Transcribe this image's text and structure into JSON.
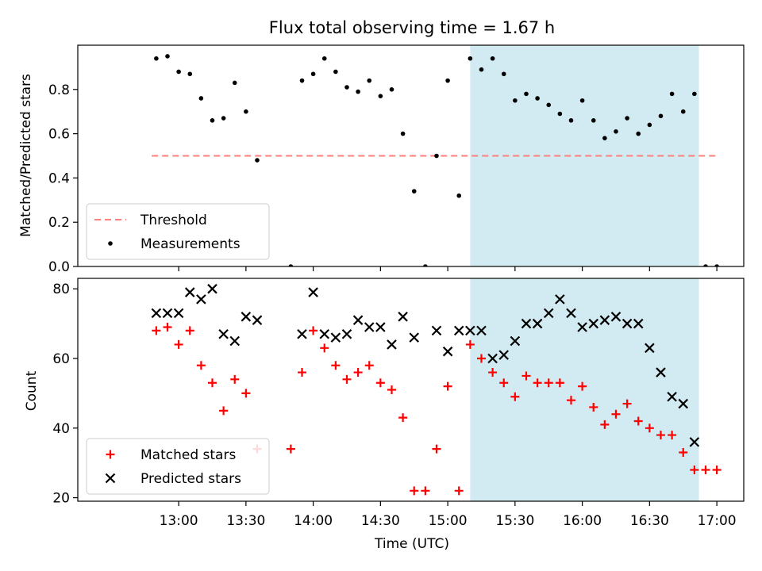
{
  "title": "Flux total observing time = 1.67 h",
  "colors": {
    "threshold": "#ff7f7f",
    "shade": "#add8e6",
    "matched": "#ff0000",
    "predicted": "#000000",
    "measurements": "#000000"
  },
  "chart_data": [
    {
      "type": "scatter",
      "ylabel": "Matched/Predicted stars",
      "ylim": [
        0,
        1.0
      ],
      "xlim_hours": [
        12.25,
        17.2
      ],
      "yticks": [
        "0.0",
        "0.2",
        "0.4",
        "0.6",
        "0.8"
      ],
      "shaded_span": [
        "15:10",
        "16:52"
      ],
      "legend_position": "lower left",
      "threshold": {
        "name": "Threshold",
        "value": 0.5,
        "x_range": [
          "12:48",
          "17:00"
        ]
      },
      "series": [
        {
          "name": "Measurements",
          "points": [
            [
              "12:50",
              0.94
            ],
            [
              "12:55",
              0.95
            ],
            [
              "13:00",
              0.88
            ],
            [
              "13:05",
              0.87
            ],
            [
              "13:10",
              0.76
            ],
            [
              "13:15",
              0.66
            ],
            [
              "13:20",
              0.67
            ],
            [
              "13:25",
              0.83
            ],
            [
              "13:30",
              0.7
            ],
            [
              "13:35",
              0.48
            ],
            [
              "13:50",
              0.0
            ],
            [
              "13:55",
              0.84
            ],
            [
              "14:00",
              0.87
            ],
            [
              "14:05",
              0.94
            ],
            [
              "14:10",
              0.88
            ],
            [
              "14:15",
              0.81
            ],
            [
              "14:20",
              0.79
            ],
            [
              "14:25",
              0.84
            ],
            [
              "14:30",
              0.77
            ],
            [
              "14:35",
              0.8
            ],
            [
              "14:40",
              0.6
            ],
            [
              "14:45",
              0.34
            ],
            [
              "14:50",
              0.0
            ],
            [
              "14:55",
              0.5
            ],
            [
              "15:00",
              0.84
            ],
            [
              "15:05",
              0.32
            ],
            [
              "15:10",
              0.94
            ],
            [
              "15:15",
              0.89
            ],
            [
              "15:20",
              0.94
            ],
            [
              "15:25",
              0.87
            ],
            [
              "15:30",
              0.75
            ],
            [
              "15:35",
              0.78
            ],
            [
              "15:40",
              0.76
            ],
            [
              "15:45",
              0.73
            ],
            [
              "15:50",
              0.69
            ],
            [
              "15:55",
              0.66
            ],
            [
              "16:00",
              0.75
            ],
            [
              "16:05",
              0.66
            ],
            [
              "16:10",
              0.58
            ],
            [
              "16:15",
              0.61
            ],
            [
              "16:20",
              0.67
            ],
            [
              "16:25",
              0.6
            ],
            [
              "16:30",
              0.64
            ],
            [
              "16:35",
              0.68
            ],
            [
              "16:40",
              0.78
            ],
            [
              "16:45",
              0.7
            ],
            [
              "16:50",
              0.78
            ],
            [
              "16:55",
              0.0
            ],
            [
              "17:00",
              0.0
            ]
          ]
        }
      ]
    },
    {
      "type": "scatter",
      "xlabel": "Time (UTC)",
      "ylabel": "Count",
      "ylim": [
        19,
        83
      ],
      "xlim_hours": [
        12.25,
        17.2
      ],
      "xticks": [
        "13:00",
        "13:30",
        "14:00",
        "14:30",
        "15:00",
        "15:30",
        "16:00",
        "16:30",
        "17:00"
      ],
      "yticks": [
        "20",
        "40",
        "60",
        "80"
      ],
      "shaded_span": [
        "15:10",
        "16:52"
      ],
      "legend_position": "lower left",
      "series": [
        {
          "name": "Matched stars",
          "marker": "+",
          "points": [
            [
              "12:50",
              68
            ],
            [
              "12:55",
              69
            ],
            [
              "13:00",
              64
            ],
            [
              "13:05",
              68
            ],
            [
              "13:10",
              58
            ],
            [
              "13:15",
              53
            ],
            [
              "13:20",
              45
            ],
            [
              "13:25",
              54
            ],
            [
              "13:30",
              50
            ],
            [
              "13:35",
              34
            ],
            [
              "13:50",
              34
            ],
            [
              "13:55",
              56
            ],
            [
              "14:00",
              68
            ],
            [
              "14:05",
              63
            ],
            [
              "14:10",
              58
            ],
            [
              "14:15",
              54
            ],
            [
              "14:20",
              56
            ],
            [
              "14:25",
              58
            ],
            [
              "14:30",
              53
            ],
            [
              "14:35",
              51
            ],
            [
              "14:40",
              43
            ],
            [
              "14:45",
              22
            ],
            [
              "14:50",
              22
            ],
            [
              "14:55",
              34
            ],
            [
              "15:00",
              52
            ],
            [
              "15:05",
              22
            ],
            [
              "15:10",
              64
            ],
            [
              "15:15",
              60
            ],
            [
              "15:20",
              56
            ],
            [
              "15:25",
              53
            ],
            [
              "15:30",
              49
            ],
            [
              "15:35",
              55
            ],
            [
              "15:40",
              53
            ],
            [
              "15:45",
              53
            ],
            [
              "15:50",
              53
            ],
            [
              "15:55",
              48
            ],
            [
              "16:00",
              52
            ],
            [
              "16:05",
              46
            ],
            [
              "16:10",
              41
            ],
            [
              "16:15",
              44
            ],
            [
              "16:20",
              47
            ],
            [
              "16:25",
              42
            ],
            [
              "16:30",
              40
            ],
            [
              "16:35",
              38
            ],
            [
              "16:40",
              38
            ],
            [
              "16:45",
              33
            ],
            [
              "16:50",
              28
            ],
            [
              "16:55",
              28
            ],
            [
              "17:00",
              28
            ]
          ]
        },
        {
          "name": "Predicted stars",
          "marker": "x",
          "points": [
            [
              "12:50",
              73
            ],
            [
              "12:55",
              73
            ],
            [
              "13:00",
              73
            ],
            [
              "13:05",
              79
            ],
            [
              "13:10",
              77
            ],
            [
              "13:15",
              80
            ],
            [
              "13:20",
              67
            ],
            [
              "13:25",
              65
            ],
            [
              "13:30",
              72
            ],
            [
              "13:35",
              71
            ],
            [
              "13:55",
              67
            ],
            [
              "14:00",
              79
            ],
            [
              "14:05",
              67
            ],
            [
              "14:10",
              66
            ],
            [
              "14:15",
              67
            ],
            [
              "14:20",
              71
            ],
            [
              "14:25",
              69
            ],
            [
              "14:30",
              69
            ],
            [
              "14:35",
              64
            ],
            [
              "14:40",
              72
            ],
            [
              "14:45",
              66
            ],
            [
              "14:55",
              68
            ],
            [
              "15:00",
              62
            ],
            [
              "15:05",
              68
            ],
            [
              "15:10",
              68
            ],
            [
              "15:15",
              68
            ],
            [
              "15:20",
              60
            ],
            [
              "15:25",
              61
            ],
            [
              "15:30",
              65
            ],
            [
              "15:35",
              70
            ],
            [
              "15:40",
              70
            ],
            [
              "15:45",
              73
            ],
            [
              "15:50",
              77
            ],
            [
              "15:55",
              73
            ],
            [
              "16:00",
              69
            ],
            [
              "16:05",
              70
            ],
            [
              "16:10",
              71
            ],
            [
              "16:15",
              72
            ],
            [
              "16:20",
              70
            ],
            [
              "16:25",
              70
            ],
            [
              "16:30",
              63
            ],
            [
              "16:35",
              56
            ],
            [
              "16:40",
              49
            ],
            [
              "16:45",
              47
            ],
            [
              "16:50",
              36
            ]
          ]
        }
      ]
    }
  ]
}
